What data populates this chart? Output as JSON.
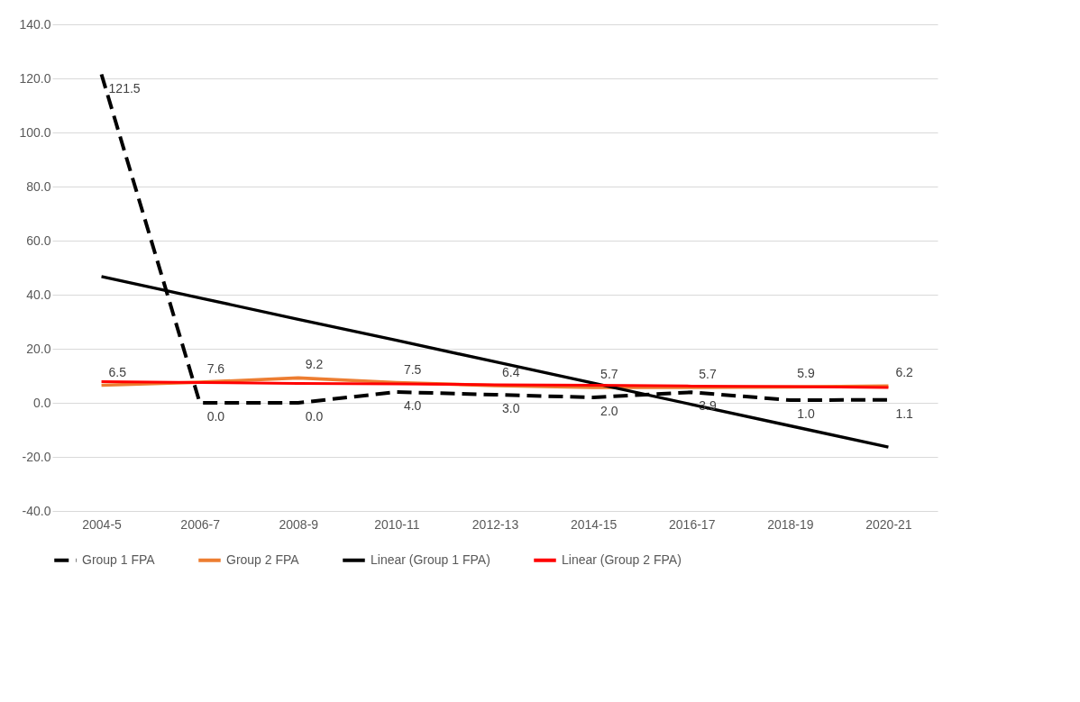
{
  "chart_data": {
    "type": "line",
    "categories": [
      "2004-5",
      "2006-7",
      "2008-9",
      "2010-11",
      "2012-13",
      "2014-15",
      "2016-17",
      "2018-19",
      "2020-21"
    ],
    "series": [
      {
        "name": "Group 1 FPA",
        "color": "#000000",
        "line_style": "dashed",
        "values": [
          121.5,
          0.0,
          0.0,
          4.0,
          3.0,
          2.0,
          3.9,
          1.0,
          1.1
        ],
        "value_labels": [
          "121.5",
          "0.0",
          "0.0",
          "4.0",
          "3.0",
          "2.0",
          "3.9",
          "1.0",
          "1.1"
        ]
      },
      {
        "name": "Group 2 FPA",
        "color": "#ed7d31",
        "line_style": "solid",
        "values": [
          6.5,
          7.6,
          9.2,
          7.5,
          6.4,
          5.7,
          5.7,
          5.9,
          6.2
        ],
        "value_labels": [
          "6.5",
          "7.6",
          "9.2",
          "7.5",
          "6.4",
          "5.7",
          "5.7",
          "5.9",
          "6.2"
        ]
      },
      {
        "name": "Linear (Group 1 FPA)",
        "color": "#000000",
        "line_style": "solid",
        "values": [
          46.7,
          38.8,
          30.9,
          23.1,
          15.2,
          7.3,
          -0.6,
          -8.5,
          -16.4
        ]
      },
      {
        "name": "Linear (Group 2 FPA)",
        "color": "#ff0000",
        "line_style": "solid",
        "values": [
          7.8,
          7.5,
          7.2,
          7.0,
          6.7,
          6.5,
          6.2,
          6.0,
          5.7
        ]
      }
    ],
    "ylim": [
      -40,
      140
    ],
    "yticks": [
      {
        "value": -40,
        "label": "-40.0"
      },
      {
        "value": -20,
        "label": "-20.0"
      },
      {
        "value": 0,
        "label": "0.0"
      },
      {
        "value": 20,
        "label": "20.0"
      },
      {
        "value": 40,
        "label": "40.0"
      },
      {
        "value": 60,
        "label": "60.0"
      },
      {
        "value": 80,
        "label": "80.0"
      },
      {
        "value": 100,
        "label": "100.0"
      },
      {
        "value": 120,
        "label": "120.0"
      },
      {
        "value": 140,
        "label": "140.0"
      }
    ],
    "grid": "y",
    "legend": "bottom",
    "marker": "none"
  }
}
